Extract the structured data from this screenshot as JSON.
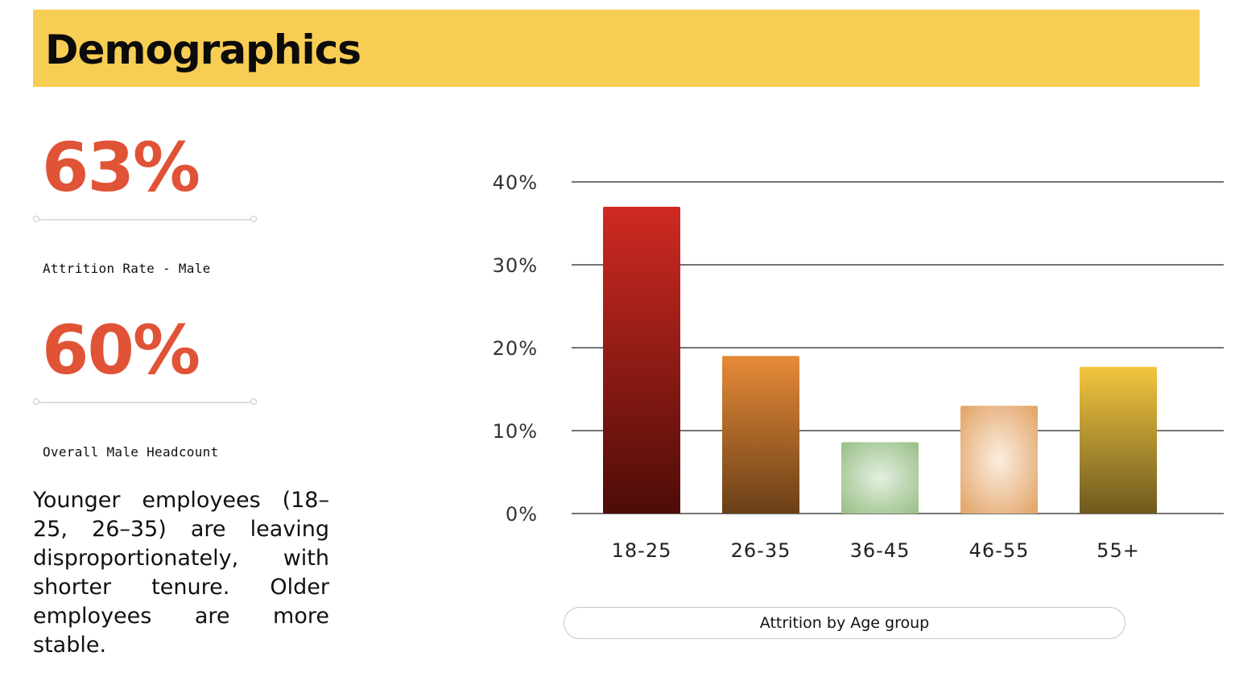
{
  "header": {
    "title": "Demographics"
  },
  "stats": [
    {
      "value": "63%",
      "label": "Attrition Rate - Male"
    },
    {
      "value": "60%",
      "label": "Overall Male Headcount"
    }
  ],
  "insight": "Younger employees (18–25, 26–35) are leaving disproportionately, with shorter tenure. Older employees are more stable.",
  "colors": {
    "accent_band": "#f8cd54",
    "stat_value": "#e05336",
    "bar_18_25": [
      "#cf2a22",
      "#4e0c08"
    ],
    "bar_26_35": [
      "#e68a38",
      "#6a3f17"
    ],
    "bar_36_45": [
      "#e4efe0",
      "#9dc28c"
    ],
    "bar_46_55": [
      "#fbeee0",
      "#e3a86e"
    ],
    "bar_55_plus": [
      "#f2c63e",
      "#6e5a1f"
    ]
  },
  "chart_data": {
    "type": "bar",
    "categories": [
      "18-25",
      "26-35",
      "36-45",
      "46-55",
      "55+"
    ],
    "values": [
      37,
      19,
      8.6,
      13,
      17.7
    ],
    "yticks": [
      "0%",
      "10%",
      "20%",
      "30%",
      "40%"
    ],
    "ylim": [
      0,
      40
    ],
    "grid": true,
    "title": "Attrition by Age group"
  }
}
